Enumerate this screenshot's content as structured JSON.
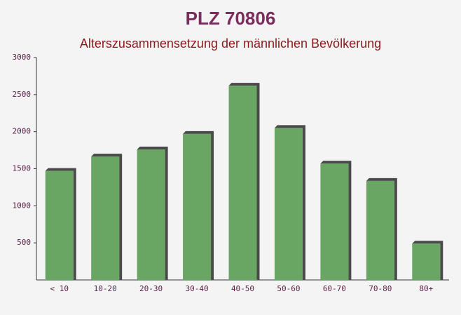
{
  "chart_data": {
    "type": "bar",
    "title": "PLZ 70806",
    "subtitle": "Alterszusammensetzung der männlichen Bevölkerung",
    "categories": [
      "< 10",
      "10-20",
      "20-30",
      "30-40",
      "40-50",
      "50-60",
      "60-70",
      "70-80",
      "80+"
    ],
    "values": [
      1470,
      1665,
      1760,
      1970,
      2620,
      2050,
      1570,
      1335,
      490
    ],
    "color": "#6aa663",
    "ylim": [
      0,
      3000
    ],
    "yticks": [
      500,
      1000,
      1500,
      2000,
      2500,
      3000
    ]
  }
}
